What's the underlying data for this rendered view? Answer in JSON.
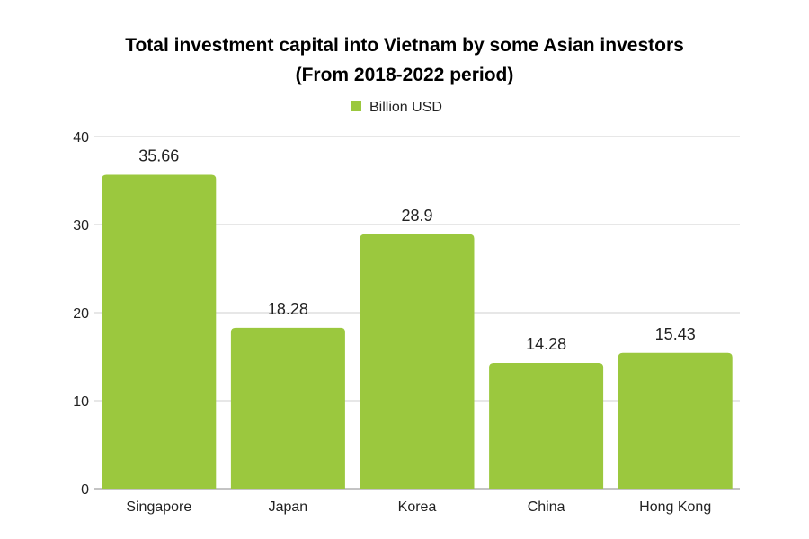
{
  "chart_data": {
    "type": "bar",
    "title_line1": "Total investment capital into Vietnam by some Asian investors",
    "title_line2": "(From 2018-2022 period)",
    "categories": [
      "Singapore",
      "Japan",
      "Korea",
      "China",
      "Hong Kong"
    ],
    "series": [
      {
        "name": "Billion USD",
        "values": [
          35.66,
          18.28,
          28.9,
          14.28,
          15.43
        ],
        "color": "#9bc83e"
      }
    ],
    "data_labels": [
      "35.66",
      "18.28",
      "28.9",
      "14.28",
      "15.43"
    ],
    "y_ticks": [
      0,
      10,
      20,
      30,
      40
    ],
    "ylim": [
      0,
      40
    ],
    "grid": true,
    "legend_position": "top-center",
    "gridline_color": "#cfcfcf"
  }
}
